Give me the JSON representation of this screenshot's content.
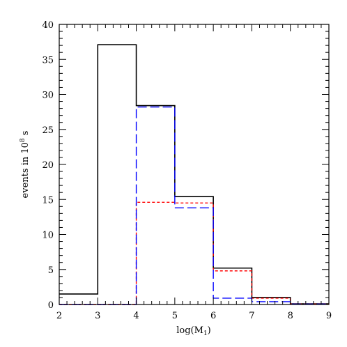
{
  "chart_data": {
    "type": "histogram",
    "xlabel_main": "log(M",
    "xlabel_sub": "1",
    "xlabel_close": ")",
    "ylabel_main": "events in 10",
    "ylabel_sup": "8",
    "ylabel_tail": " s",
    "xlim": [
      2,
      9
    ],
    "ylim": [
      0,
      40
    ],
    "xticks": [
      2,
      3,
      4,
      5,
      6,
      7,
      8,
      9
    ],
    "yticks": [
      0,
      5,
      10,
      15,
      20,
      25,
      30,
      35,
      40
    ],
    "bin_edges": [
      2,
      3,
      4,
      5,
      6,
      7,
      8,
      9
    ],
    "grid": false,
    "series": [
      {
        "color": "#000000",
        "style": "solid",
        "values": [
          1.5,
          37.1,
          28.4,
          15.4,
          5.2,
          1.0,
          0.1
        ]
      },
      {
        "color": "#ff0000",
        "style": "dotted",
        "values": [
          0,
          0,
          14.6,
          14.5,
          4.8,
          0.9,
          0.05
        ]
      },
      {
        "color": "#0000ff",
        "style": "dashed",
        "values": [
          0,
          0,
          28.2,
          13.8,
          0.9,
          0.4,
          0.05
        ]
      }
    ]
  }
}
